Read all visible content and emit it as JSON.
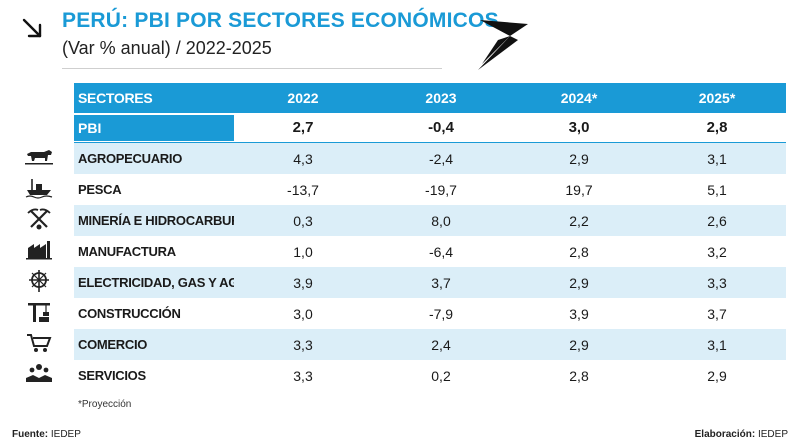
{
  "header": {
    "title": "PERÚ: PBI POR SECTORES ECONÓMICOS",
    "subtitle": "(Var % anual) / 2022-2025"
  },
  "colors": {
    "accent": "#1a9ad6",
    "row_alt": "#dbeef8"
  },
  "icons": [
    "arrow-down-right-icon",
    "brand-logo-icon",
    "cow-icon",
    "fishing-boat-icon",
    "mining-icon",
    "factory-icon",
    "power-tower-icon",
    "crane-icon",
    "shopping-cart-icon",
    "handshake-icon"
  ],
  "chart_data": {
    "type": "table",
    "columns": [
      "SECTORES",
      "2022",
      "2023",
      "2024*",
      "2025*"
    ],
    "rows": [
      {
        "sector": "PBI",
        "values": [
          "2,7",
          "-0,4",
          "3,0",
          "2,8"
        ]
      },
      {
        "sector": "AGROPECUARIO",
        "values": [
          "4,3",
          "-2,4",
          "2,9",
          "3,1"
        ]
      },
      {
        "sector": "PESCA",
        "values": [
          "-13,7",
          "-19,7",
          "19,7",
          "5,1"
        ]
      },
      {
        "sector": "MINERÍA E HIDROCARBUROS",
        "values": [
          "0,3",
          "8,0",
          "2,2",
          "2,6"
        ]
      },
      {
        "sector": "MANUFACTURA",
        "values": [
          "1,0",
          "-6,4",
          "2,8",
          "3,2"
        ]
      },
      {
        "sector": "ELECTRICIDAD, GAS Y AGUA",
        "values": [
          "3,9",
          "3,7",
          "2,9",
          "3,3"
        ]
      },
      {
        "sector": "CONSTRUCCIÓN",
        "values": [
          "3,0",
          "-7,9",
          "3,9",
          "3,7"
        ]
      },
      {
        "sector": "COMERCIO",
        "values": [
          "3,3",
          "2,4",
          "2,9",
          "3,1"
        ]
      },
      {
        "sector": "SERVICIOS",
        "values": [
          "3,3",
          "0,2",
          "2,8",
          "2,9"
        ]
      }
    ]
  },
  "footer": {
    "note": "*Proyección",
    "source_label": "Fuente:",
    "source_value": "IEDEP",
    "credit_label": "Elaboración:",
    "credit_value": "IEDEP"
  }
}
